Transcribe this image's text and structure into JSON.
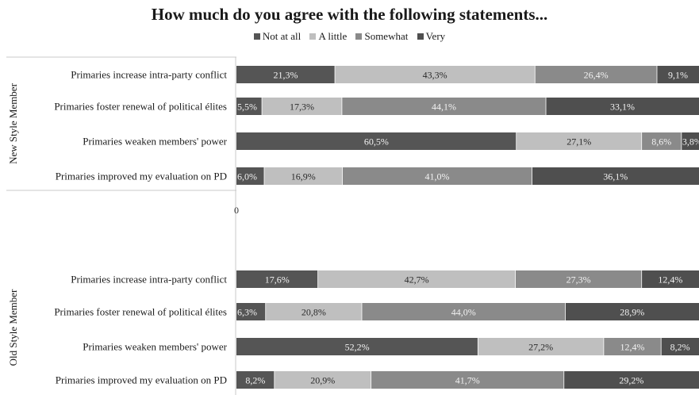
{
  "chart_data": {
    "type": "bar",
    "orientation": "horizontal",
    "stacked": "percent",
    "title": "How much do you agree with the following statements...",
    "legend": {
      "position": "top"
    },
    "zero_label": "0",
    "series": [
      {
        "name": "Not at all",
        "color": "#555555"
      },
      {
        "name": "A little",
        "color": "#bfbfbf"
      },
      {
        "name": "Somewhat",
        "color": "#8a8a8a"
      },
      {
        "name": "Very",
        "color": "#4f4f4f"
      }
    ],
    "groups": [
      {
        "label": "New Style Member",
        "rows": [
          {
            "category": "Primaries increase intra-party conflict",
            "values": [
              21.3,
              43.3,
              26.4,
              9.1
            ],
            "labels": [
              "21,3%",
              "43,3%",
              "26,4%",
              "9,1%"
            ]
          },
          {
            "category": "Primaries foster renewal of political élites",
            "values": [
              5.5,
              17.3,
              44.1,
              33.1
            ],
            "labels": [
              "5,5%",
              "17,3%",
              "44,1%",
              "33,1%"
            ]
          },
          {
            "category": "Primaries weaken members' power",
            "values": [
              60.5,
              27.1,
              8.6,
              3.8
            ],
            "labels": [
              "60,5%",
              "27,1%",
              "8,6%",
              "3,8%"
            ]
          },
          {
            "category": "Primaries improved my evaluation on PD",
            "values": [
              6.0,
              16.9,
              41.0,
              36.1
            ],
            "labels": [
              "6,0%",
              "16,9%",
              "41,0%",
              "36,1%"
            ]
          }
        ]
      },
      {
        "label": "Old Style Member",
        "rows": [
          {
            "category": "Primaries increase intra-party conflict",
            "values": [
              17.6,
              42.7,
              27.3,
              12.4
            ],
            "labels": [
              "17,6%",
              "42,7%",
              "27,3%",
              "12,4%"
            ]
          },
          {
            "category": "Primaries foster renewal of political élites",
            "values": [
              6.3,
              20.8,
              44.0,
              28.9
            ],
            "labels": [
              "6,3%",
              "20,8%",
              "44,0%",
              "28,9%"
            ]
          },
          {
            "category": "Primaries weaken members' power",
            "values": [
              52.2,
              27.2,
              12.4,
              8.2
            ],
            "labels": [
              "52,2%",
              "27,2%",
              "12,4%",
              "8,2%"
            ]
          },
          {
            "category": "Primaries improved my evaluation on PD",
            "values": [
              8.2,
              20.9,
              41.7,
              29.2
            ],
            "labels": [
              "8,2%",
              "20,9%",
              "41,7%",
              "29,2%"
            ]
          }
        ]
      }
    ]
  }
}
